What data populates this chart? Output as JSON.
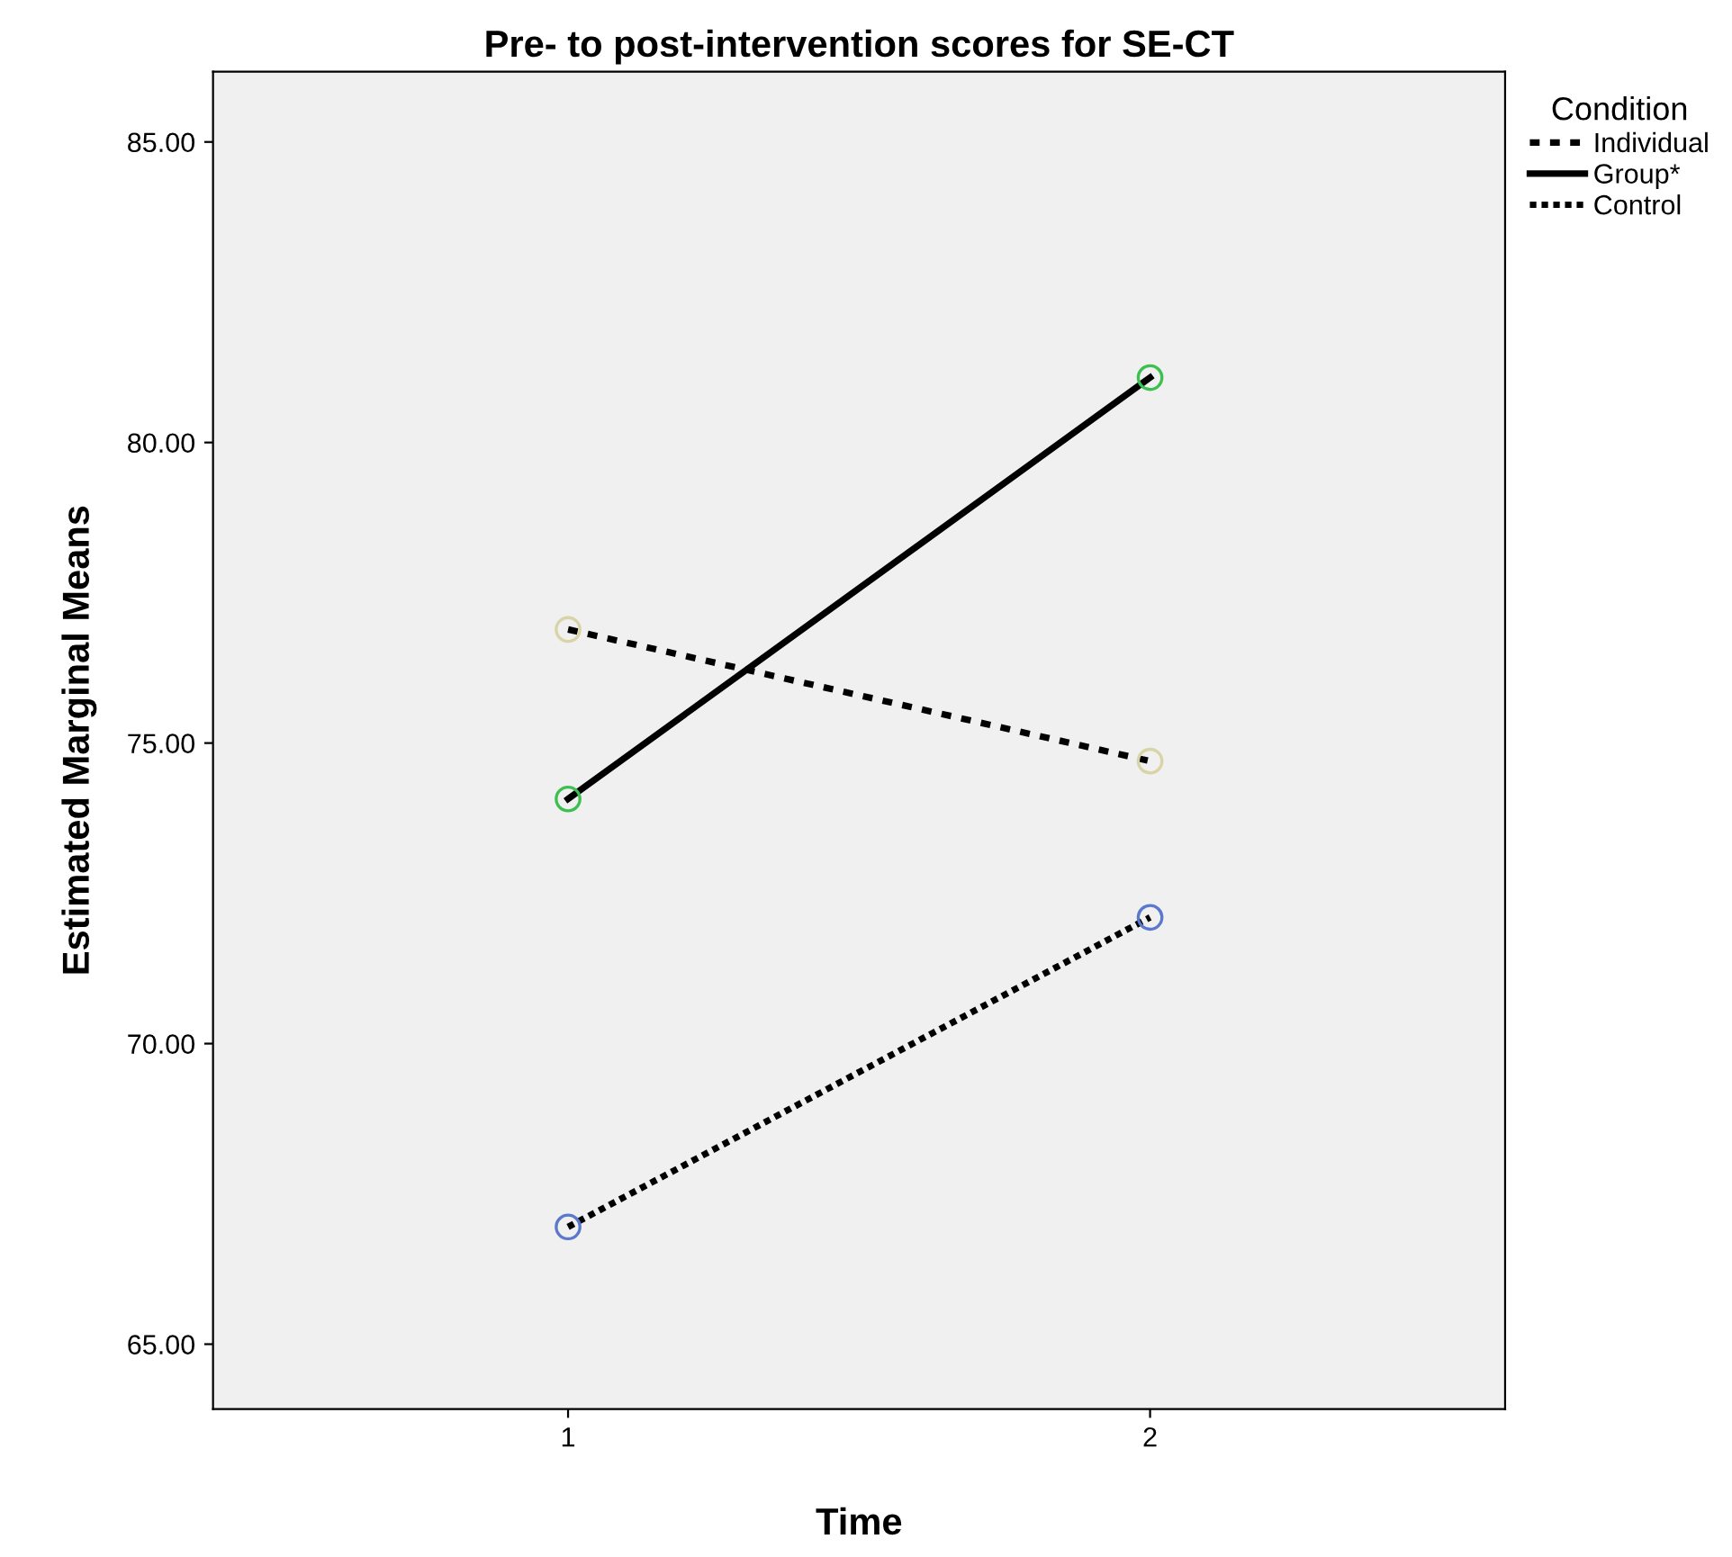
{
  "chart_data": {
    "type": "line",
    "title": "Pre- to post-intervention scores for SE-CT",
    "xlabel": "Time",
    "ylabel": "Estimated Marginal Means",
    "legend_title": "Condition",
    "x": [
      1,
      2
    ],
    "series": [
      {
        "name": "Individual",
        "color": "#000000",
        "colors": [
          "#d8d4a8",
          "#d8d4a8"
        ],
        "line_style": "dashed",
        "values": [
          76.89,
          74.7
        ]
      },
      {
        "name": "Group*",
        "color": "#000000",
        "colors": [
          "#3cc050",
          "#3cc050"
        ],
        "line_style": "solid",
        "values": [
          74.07,
          81.08
        ]
      },
      {
        "name": "Control",
        "color": "#000000",
        "colors": [
          "#5a78cc",
          "#5a78cc"
        ],
        "line_style": "dotted",
        "values": [
          66.95,
          72.1
        ]
      }
    ],
    "marker": "circle",
    "xlim": [
      0.39,
      2.61
    ],
    "xticks": [
      1,
      2
    ],
    "ylim": [
      63.92,
      86.17
    ],
    "yticks": [
      {
        "value": 65,
        "label": "65.00"
      },
      {
        "value": 70,
        "label": "70.00"
      },
      {
        "value": 75,
        "label": "75.00"
      },
      {
        "value": 80,
        "label": "80.00"
      },
      {
        "value": 85,
        "label": "85.00"
      }
    ],
    "grid": false,
    "legend": "top right"
  }
}
